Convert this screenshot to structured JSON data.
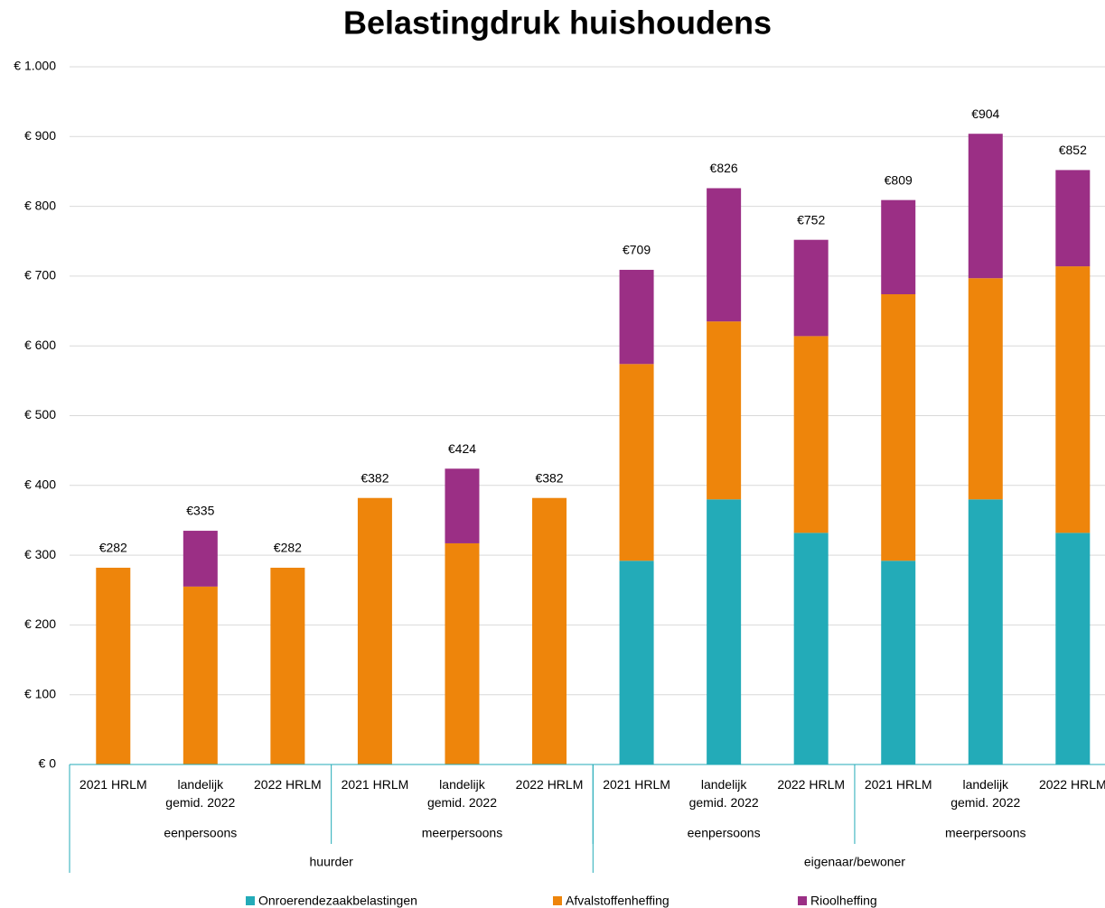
{
  "chart_data": {
    "type": "bar",
    "stacked": true,
    "title": "Belastingdruk huishoudens",
    "categories": [
      "2021 HRLM",
      "landelijk gemid. 2022",
      "2022 HRLM",
      "2021 HRLM",
      "landelijk gemid. 2022",
      "2022  HRLM",
      "2021 HRLM",
      "landelijk gemid. 2022",
      "2022 HRLM",
      "2021 HRLM",
      "landelijk gemid. 2022",
      "2022  HRLM"
    ],
    "groups": [
      {
        "label": "eenpersoons",
        "span": 3
      },
      {
        "label": "meerpersoons",
        "span": 3
      },
      {
        "label": "eenpersoons",
        "span": 3
      },
      {
        "label": "meerpersoons",
        "span": 3
      }
    ],
    "supergroups": [
      {
        "label": "huurder",
        "span": 6
      },
      {
        "label": "eigenaar/bewoner",
        "span": 6
      }
    ],
    "series": [
      {
        "name": "Onroerendezaakbelastingen",
        "color": "#23abb8",
        "values": [
          0,
          0,
          0,
          0,
          0,
          0,
          292,
          380,
          332,
          292,
          380,
          332
        ]
      },
      {
        "name": "Afvalstoffenheffing",
        "color": "#ee850b",
        "values": [
          282,
          255,
          282,
          382,
          317,
          382,
          282,
          255,
          282,
          382,
          317,
          382
        ]
      },
      {
        "name": "Rioolheffing",
        "color": "#9b2f85",
        "values": [
          0,
          80,
          0,
          0,
          107,
          0,
          135,
          191,
          138,
          135,
          207,
          138
        ]
      }
    ],
    "totals": [
      282,
      335,
      282,
      382,
      424,
      382,
      709,
      826,
      752,
      809,
      904,
      852
    ],
    "total_labels": [
      "€282",
      "€335",
      "€282",
      "€382",
      "€424",
      "€382",
      "€709",
      "€826",
      "€752",
      "€809",
      "€904",
      "€852"
    ],
    "ylim": [
      0,
      1000
    ],
    "yticks": [
      {
        "value": 0,
        "label": "€ 0"
      },
      {
        "value": 100,
        "label": "€ 100"
      },
      {
        "value": 200,
        "label": "€ 200"
      },
      {
        "value": 300,
        "label": "€ 300"
      },
      {
        "value": 400,
        "label": "€ 400"
      },
      {
        "value": 500,
        "label": "€ 500"
      },
      {
        "value": 600,
        "label": "€ 600"
      },
      {
        "value": 700,
        "label": "€ 700"
      },
      {
        "value": 800,
        "label": "€ 800"
      },
      {
        "value": 900,
        "label": "€ 900"
      },
      {
        "value": 1000,
        "label": "€ 1.000"
      }
    ],
    "grid": true,
    "legend": "bottom"
  }
}
